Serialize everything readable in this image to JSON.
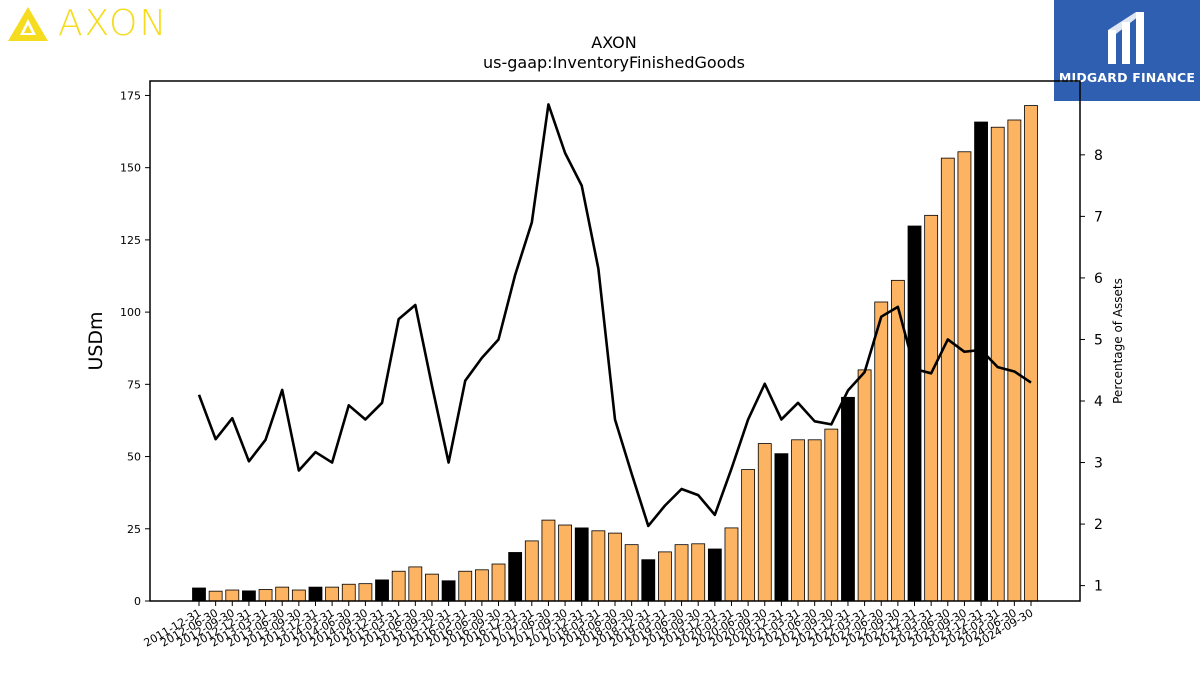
{
  "branding": {
    "left_logo_text": "AXON",
    "left_logo_color": "#f5dc1e",
    "right_logo_text": "MIDGARD FINANCE",
    "right_logo_bg": "#2f5fb0"
  },
  "colors": {
    "bar_normal": "#fdb462",
    "bar_highlight": "#000000",
    "line": "#000000"
  },
  "chart_data": {
    "type": "bar",
    "title": "AXON",
    "subtitle": "us-gaap:InventoryFinishedGoods",
    "ylabel": "USDm",
    "y2label": "Percentage of Assets",
    "ylim": [
      0,
      180
    ],
    "y2lim": [
      0.75,
      9.2
    ],
    "yticks": [
      0,
      25,
      50,
      75,
      100,
      125,
      150,
      175
    ],
    "y2ticks": [
      1,
      2,
      3,
      4,
      5,
      6,
      7,
      8
    ],
    "categories": [
      "2011-12-31",
      "2012-06-30",
      "2012-09-30",
      "2012-12-31",
      "2013-03-31",
      "2013-06-30",
      "2013-09-30",
      "2013-12-31",
      "2014-03-31",
      "2014-06-30",
      "2014-09-30",
      "2014-12-31",
      "2015-03-31",
      "2015-06-30",
      "2015-09-30",
      "2015-12-31",
      "2016-03-31",
      "2016-06-30",
      "2016-09-30",
      "2016-12-31",
      "2017-03-31",
      "2017-06-30",
      "2017-09-30",
      "2017-12-31",
      "2018-03-31",
      "2018-06-30",
      "2018-09-30",
      "2018-12-31",
      "2019-03-31",
      "2019-06-30",
      "2019-09-30",
      "2019-12-31",
      "2020-03-31",
      "2020-06-30",
      "2020-09-30",
      "2020-12-31",
      "2021-03-31",
      "2021-06-30",
      "2021-09-30",
      "2021-12-31",
      "2022-03-31",
      "2022-06-30",
      "2022-09-30",
      "2022-12-31",
      "2023-03-31",
      "2023-06-30",
      "2023-09-30",
      "2023-12-31",
      "2024-03-31",
      "2024-06-30",
      "2024-09-30"
    ],
    "series": [
      {
        "type": "bar",
        "values": [
          4.5,
          3.4,
          3.8,
          3.5,
          4.0,
          4.8,
          3.8,
          4.8,
          4.8,
          5.8,
          6.0,
          7.3,
          10.3,
          11.8,
          9.3,
          7.0,
          10.3,
          10.8,
          12.8,
          16.8,
          20.8,
          28.0,
          26.3,
          25.3,
          24.3,
          23.5,
          19.5,
          14.3,
          17.0,
          19.5,
          19.8,
          18.0,
          25.3,
          45.5,
          54.5,
          51.0,
          55.8,
          55.8,
          59.5,
          70.5,
          80.0,
          103.5,
          111.0,
          129.8,
          133.5,
          153.3,
          155.5,
          165.8,
          164.0,
          166.5,
          171.5
        ],
        "highlight": [
          true,
          false,
          false,
          true,
          false,
          false,
          false,
          true,
          false,
          false,
          false,
          true,
          false,
          false,
          false,
          true,
          false,
          false,
          false,
          true,
          false,
          false,
          false,
          true,
          false,
          false,
          false,
          true,
          false,
          false,
          false,
          true,
          false,
          false,
          false,
          true,
          false,
          false,
          false,
          true,
          false,
          false,
          false,
          true,
          false,
          false,
          false,
          true,
          false,
          false,
          false
        ]
      },
      {
        "type": "line",
        "axis": "right",
        "values": [
          4.1,
          3.38,
          3.72,
          3.02,
          3.37,
          4.18,
          2.87,
          3.17,
          3.0,
          3.93,
          3.7,
          3.97,
          5.33,
          5.56,
          4.25,
          3.0,
          4.33,
          4.7,
          5.0,
          6.05,
          6.9,
          8.82,
          8.03,
          7.5,
          6.15,
          3.7,
          2.82,
          1.97,
          2.3,
          2.57,
          2.47,
          2.15,
          2.9,
          3.7,
          4.28,
          3.7,
          3.97,
          3.67,
          3.62,
          4.17,
          4.47,
          5.37,
          5.53,
          4.52,
          4.45,
          5.0,
          4.8,
          4.83,
          4.55,
          4.48,
          4.3
        ]
      }
    ]
  }
}
